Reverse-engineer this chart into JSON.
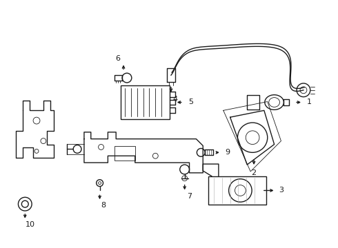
{
  "bg": "#ffffff",
  "lc": "#1a1a1a",
  "lw": 1.0,
  "tlw": 0.6,
  "fs": 7.5,
  "figw": 4.9,
  "figh": 3.6,
  "dpi": 100
}
